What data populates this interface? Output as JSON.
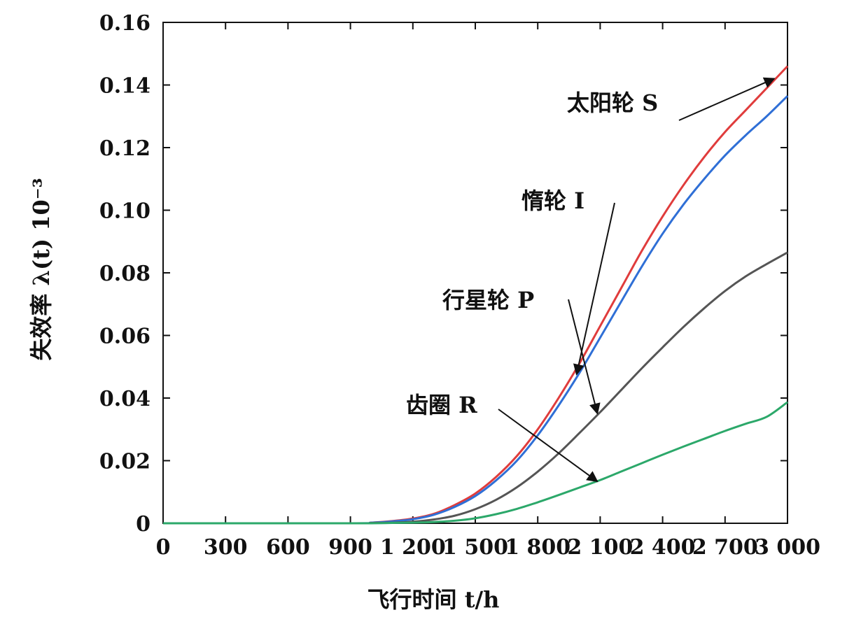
{
  "chart_data": {
    "type": "line",
    "xlabel": "飞行时间 t/h",
    "ylabel": "失效率 λ(t) 10⁻³",
    "xlim": [
      0,
      3000
    ],
    "ylim": [
      0,
      0.16
    ],
    "xticks": [
      0,
      300,
      600,
      900,
      1200,
      1500,
      1800,
      2100,
      2400,
      2700,
      3000
    ],
    "xtick_labels": [
      "0",
      "300",
      "600",
      "900",
      "1 200",
      "1 500",
      "1 800",
      "2 100",
      "2 400",
      "2 700",
      "3 000"
    ],
    "yticks": [
      0,
      0.02,
      0.04,
      0.06,
      0.08,
      0.1,
      0.12,
      0.14,
      0.16
    ],
    "ytick_labels": [
      "0",
      "0.02",
      "0.04",
      "0.06",
      "0.08",
      "0.10",
      "0.12",
      "0.14",
      "0.16"
    ],
    "grid": false,
    "x": [
      0,
      900,
      1000,
      1100,
      1200,
      1300,
      1400,
      1500,
      1600,
      1700,
      1800,
      1900,
      2000,
      2100,
      2200,
      2300,
      2400,
      2500,
      2600,
      2700,
      2800,
      2900,
      3000
    ],
    "series": [
      {
        "name": "太阳轮 S",
        "color": "#e03c3c",
        "values": [
          0,
          0,
          0.0002,
          0.0007,
          0.0015,
          0.003,
          0.0058,
          0.0095,
          0.0148,
          0.0215,
          0.03,
          0.04,
          0.051,
          0.063,
          0.075,
          0.087,
          0.098,
          0.108,
          0.117,
          0.125,
          0.132,
          0.139,
          0.146
        ]
      },
      {
        "name": "惰轮 I",
        "color": "#2f6fd6",
        "values": [
          0,
          0,
          0.0002,
          0.0006,
          0.0013,
          0.0027,
          0.0052,
          0.0087,
          0.0137,
          0.02,
          0.0281,
          0.0376,
          0.048,
          0.0593,
          0.0707,
          0.082,
          0.0925,
          0.1018,
          0.11,
          0.1175,
          0.124,
          0.13,
          0.1365
        ]
      },
      {
        "name": "行星轮 P",
        "color": "#555555",
        "values": [
          0,
          0,
          0.0001,
          0.0002,
          0.0005,
          0.0012,
          0.0024,
          0.0045,
          0.0075,
          0.0115,
          0.0165,
          0.0223,
          0.0288,
          0.0355,
          0.0425,
          0.0495,
          0.0562,
          0.0627,
          0.0687,
          0.0742,
          0.0789,
          0.0828,
          0.0865
        ]
      },
      {
        "name": "齿圈 R",
        "color": "#2ca86a",
        "values": [
          0,
          0,
          0,
          0.0001,
          0.0002,
          0.0004,
          0.0008,
          0.0016,
          0.0029,
          0.0046,
          0.0067,
          0.009,
          0.0114,
          0.0138,
          0.0165,
          0.0192,
          0.0219,
          0.0245,
          0.027,
          0.0295,
          0.0318,
          0.034,
          0.0387
        ]
      }
    ],
    "annotations": [
      {
        "series": "太阳轮 S",
        "text": "太阳轮 S",
        "point_x": 2950
      },
      {
        "series": "惰轮 I",
        "text": "惰轮 I",
        "point_x": 2000
      },
      {
        "series": "行星轮 P",
        "text": "行星轮 P",
        "point_x": 2100
      },
      {
        "series": "齿圈 R",
        "text": "齿圈 R",
        "point_x": 2100
      }
    ]
  }
}
